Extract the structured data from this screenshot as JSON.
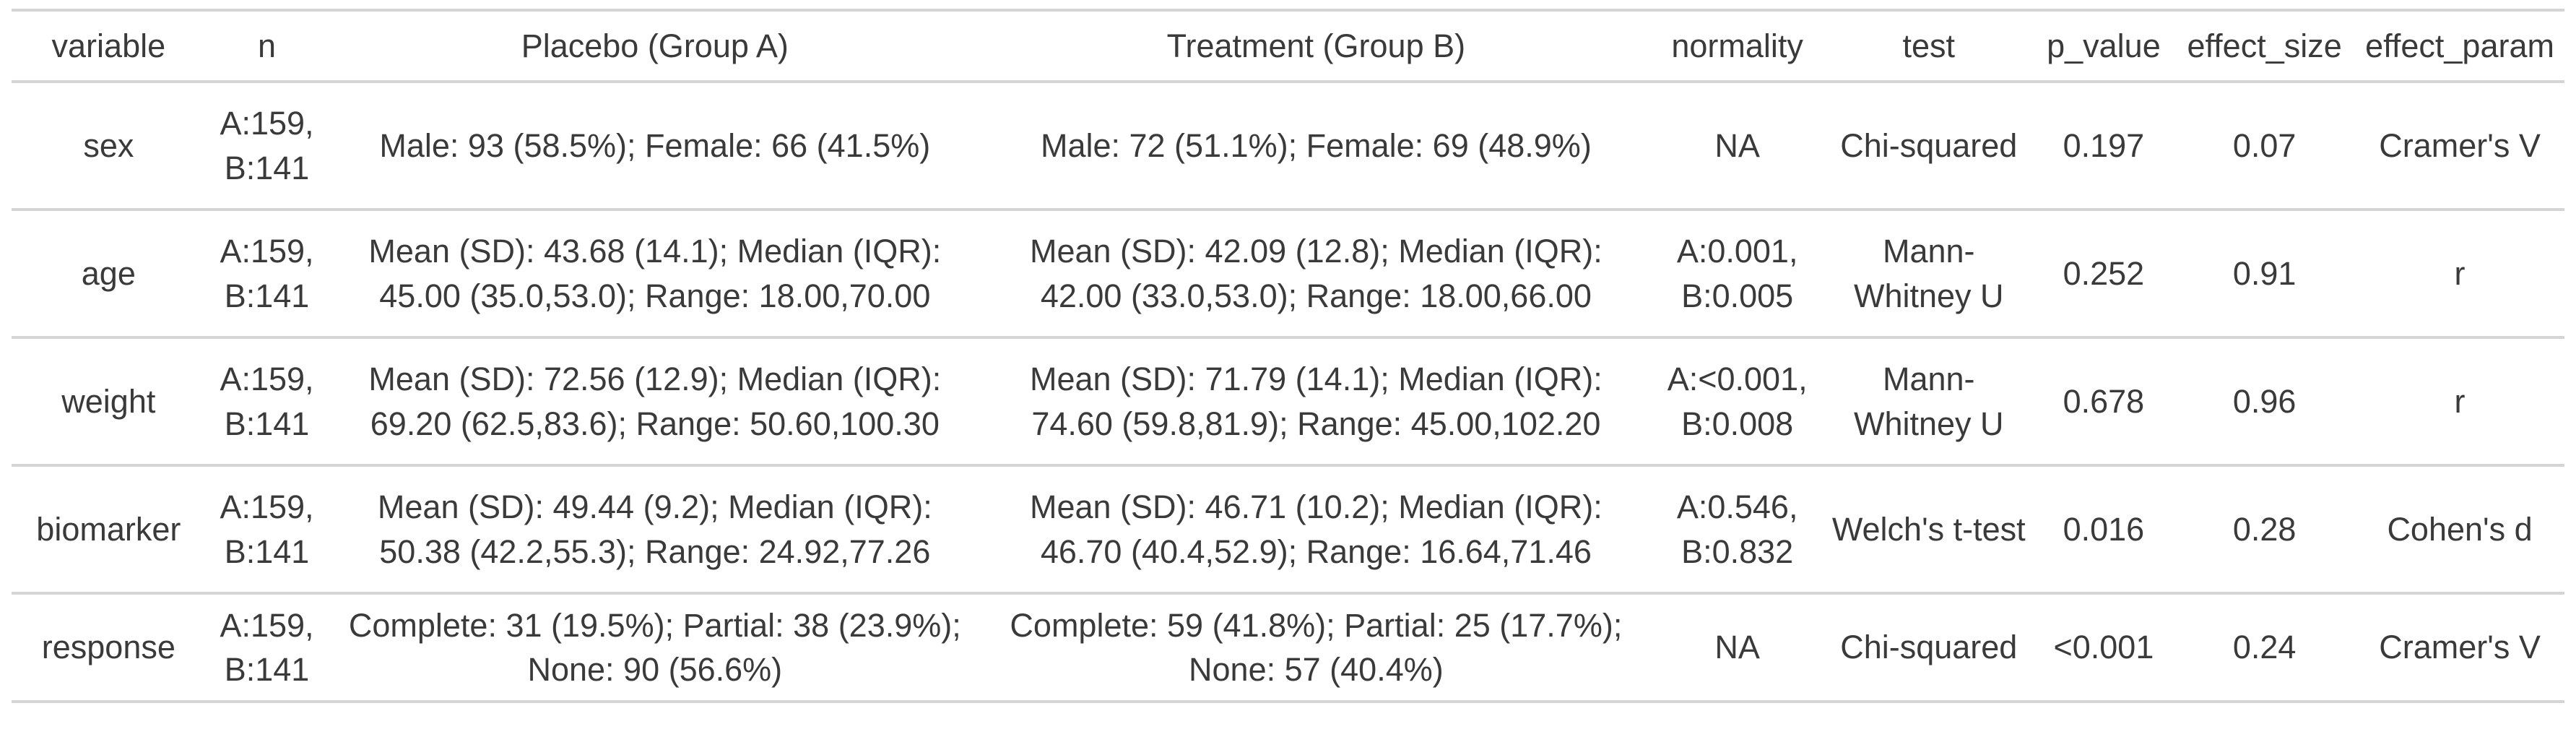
{
  "colors": {
    "background": "#ffffff",
    "text": "#3a3a3a",
    "row_separator": "#d5d5d5"
  },
  "chart_data": {
    "type": "table",
    "columns": [
      "variable",
      "n",
      "Placebo (Group A)",
      "Treatment (Group B)",
      "normality",
      "test",
      "p_value",
      "effect_size",
      "effect_param"
    ],
    "rows": [
      [
        "sex",
        "A:159, B:141",
        "Male: 93 (58.5%); Female: 66 (41.5%)",
        "Male: 72 (51.1%); Female: 69 (48.9%)",
        "NA",
        "Chi-squared",
        "0.197",
        "0.07",
        "Cramer's V"
      ],
      [
        "age",
        "A:159, B:141",
        "Mean (SD): 43.68 (14.1); Median (IQR): 45.00 (35.0,53.0); Range: 18.00,70.00",
        "Mean (SD): 42.09 (12.8); Median (IQR): 42.00 (33.0,53.0); Range: 18.00,66.00",
        "A:0.001, B:0.005",
        "Mann-Whitney U",
        "0.252",
        "0.91",
        "r"
      ],
      [
        "weight",
        "A:159, B:141",
        "Mean (SD): 72.56 (12.9); Median (IQR): 69.20 (62.5,83.6); Range: 50.60,100.30",
        "Mean (SD): 71.79 (14.1); Median (IQR): 74.60 (59.8,81.9); Range: 45.00,102.20",
        "A:<0.001, B:0.008",
        "Mann-Whitney U",
        "0.678",
        "0.96",
        "r"
      ],
      [
        "biomarker",
        "A:159, B:141",
        "Mean (SD): 49.44 (9.2); Median (IQR): 50.38 (42.2,55.3); Range: 24.92,77.26",
        "Mean (SD): 46.71 (10.2); Median (IQR): 46.70 (40.4,52.9); Range: 16.64,71.46",
        "A:0.546, B:0.832",
        "Welch's t-test",
        "0.016",
        "0.28",
        "Cohen's d"
      ],
      [
        "response",
        "A:159, B:141",
        "Complete: 31 (19.5%); Partial: 38 (23.9%); None: 90 (56.6%)",
        "Complete: 59 (41.8%); Partial: 25 (17.7%); None: 57 (40.4%)",
        "NA",
        "Chi-squared",
        "<0.001",
        "0.24",
        "Cramer's V"
      ]
    ]
  }
}
